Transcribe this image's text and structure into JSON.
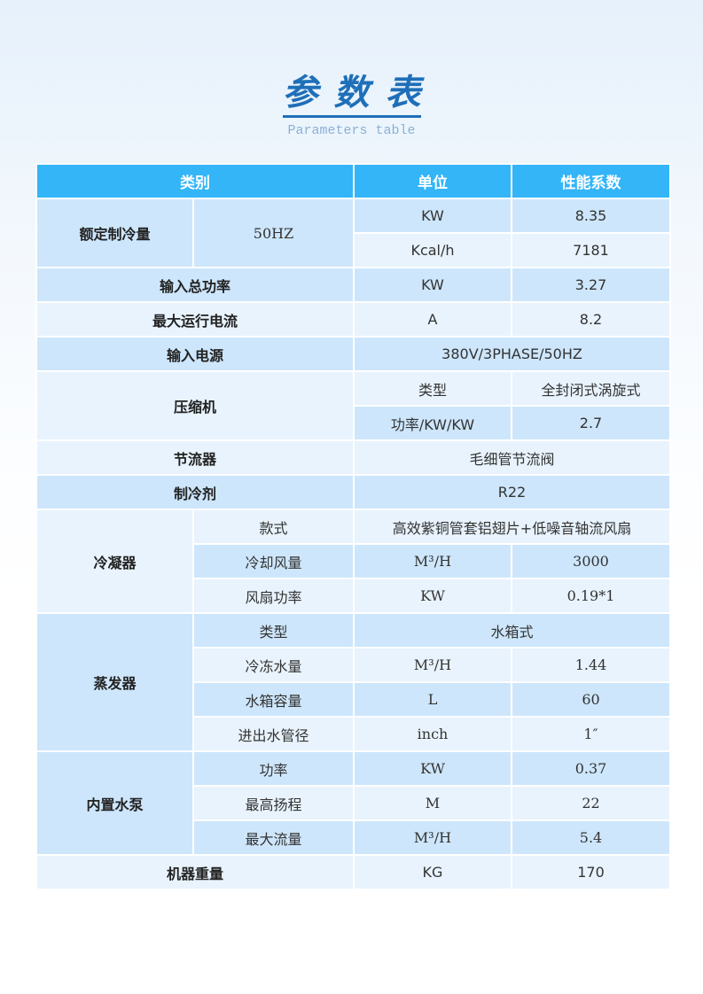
{
  "title": {
    "cn": "参数表",
    "en": "Parameters table"
  },
  "colors": {
    "header": "#33b5f7",
    "row_dark": "#cde6fb",
    "row_light": "#e8f3fd",
    "title": "#1f6fb8"
  },
  "header": [
    "类别",
    "单位",
    "性能系数"
  ],
  "groups": [
    {
      "label": "额定制冷量",
      "sub": "50HZ",
      "rows": [
        [
          "KW",
          "8.35"
        ],
        [
          "Kcal/h",
          "7181"
        ]
      ]
    },
    {
      "label": "输入总功率",
      "rows": [
        [
          "KW",
          "3.27"
        ]
      ]
    },
    {
      "label": "最大运行电流",
      "rows": [
        [
          "A",
          "8.2"
        ]
      ]
    },
    {
      "label": "输入电源",
      "rows": [
        [
          "380V/3PHASE/50HZ"
        ]
      ]
    },
    {
      "label": "压缩机",
      "rows": [
        [
          "类型",
          "全封闭式涡旋式"
        ],
        [
          "功率/KW/KW",
          "2.7"
        ]
      ]
    },
    {
      "label": "节流器",
      "rows": [
        [
          "毛细管节流阀"
        ]
      ]
    },
    {
      "label": "制冷剂",
      "rows": [
        [
          "R22"
        ]
      ]
    },
    {
      "label": "冷凝器",
      "split": true,
      "rows": [
        [
          "款式",
          "高效紫铜管套铝翅片+低噪音轴流风扇"
        ],
        [
          "冷却风量",
          "M³/H",
          "3000"
        ],
        [
          "风扇功率",
          "KW",
          "0.19*1"
        ]
      ]
    },
    {
      "label": "蒸发器",
      "split": true,
      "rows": [
        [
          "类型",
          "水箱式"
        ],
        [
          "冷冻水量",
          "M³/H",
          "1.44"
        ],
        [
          "水箱容量",
          "L",
          "60"
        ],
        [
          "进出水管径",
          "inch",
          "1″"
        ]
      ]
    },
    {
      "label": "内置水泵",
      "split": true,
      "rows": [
        [
          "功率",
          "KW",
          "0.37"
        ],
        [
          "最高扬程",
          "M",
          "22"
        ],
        [
          "最大流量",
          "M³/H",
          "5.4"
        ]
      ]
    },
    {
      "label": "机器重量",
      "rows": [
        [
          "KG",
          "170"
        ]
      ]
    }
  ]
}
